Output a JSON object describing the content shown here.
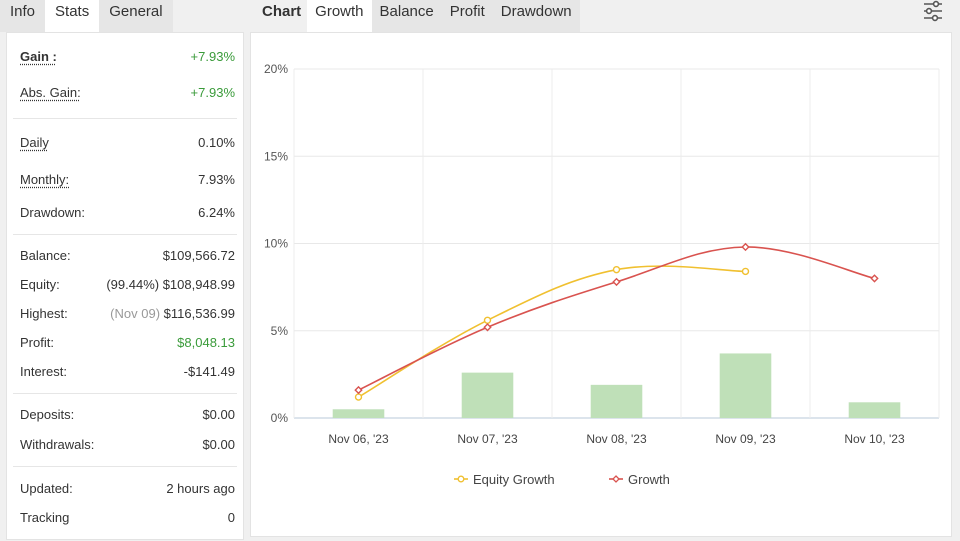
{
  "left_tabs": [
    "Info",
    "Stats",
    "General"
  ],
  "stats": {
    "gain": {
      "label": "Gain :",
      "value": "+7.93%"
    },
    "abs_gain": {
      "label": "Abs. Gain:",
      "value": "+7.93%"
    },
    "daily": {
      "label": "Daily",
      "value": "0.10%"
    },
    "monthly": {
      "label": "Monthly:",
      "value": "7.93%"
    },
    "drawdown": {
      "label": "Drawdown:",
      "value": "6.24%"
    },
    "balance": {
      "label": "Balance:",
      "value": "$109,566.72"
    },
    "equity": {
      "label": "Equity:",
      "note": "(99.44%)",
      "value": "$108,948.99"
    },
    "highest": {
      "label": "Highest:",
      "note": "(Nov 09)",
      "value": "$116,536.99"
    },
    "profit": {
      "label": "Profit:",
      "value": "$8,048.13"
    },
    "interest": {
      "label": "Interest:",
      "value": "-$141.49"
    },
    "deposits": {
      "label": "Deposits:",
      "value": "$0.00"
    },
    "withdrawals": {
      "label": "Withdrawals:",
      "value": "$0.00"
    },
    "updated": {
      "label": "Updated:",
      "value": "2 hours ago"
    },
    "tracking": {
      "label": "Tracking",
      "value": "0"
    }
  },
  "chart_label": "Chart",
  "chart_tabs": [
    "Growth",
    "Balance",
    "Profit",
    "Drawdown"
  ],
  "icons": {
    "settings": "sliders-icon"
  },
  "colors": {
    "equity_growth": "#f0c030",
    "growth": "#d9534f",
    "bars": "#bfe0b8",
    "positive": "#3a9b3a"
  },
  "chart_data": {
    "type": "line",
    "categories": [
      "Nov 06, '23",
      "Nov 07, '23",
      "Nov 08, '23",
      "Nov 09, '23",
      "Nov 10, '23"
    ],
    "y_ticks": [
      "0%",
      "5%",
      "10%",
      "15%",
      "20%"
    ],
    "ylim": [
      0,
      20
    ],
    "grid": true,
    "legend_position": "bottom",
    "series": [
      {
        "name": "Equity Growth",
        "type": "line",
        "values": [
          1.2,
          5.6,
          8.5,
          8.4,
          null
        ]
      },
      {
        "name": "Growth",
        "type": "line",
        "values": [
          1.6,
          5.2,
          7.8,
          9.8,
          8.0
        ]
      },
      {
        "type": "bar",
        "values": [
          0.5,
          2.6,
          1.9,
          3.7,
          0.9
        ]
      }
    ]
  }
}
